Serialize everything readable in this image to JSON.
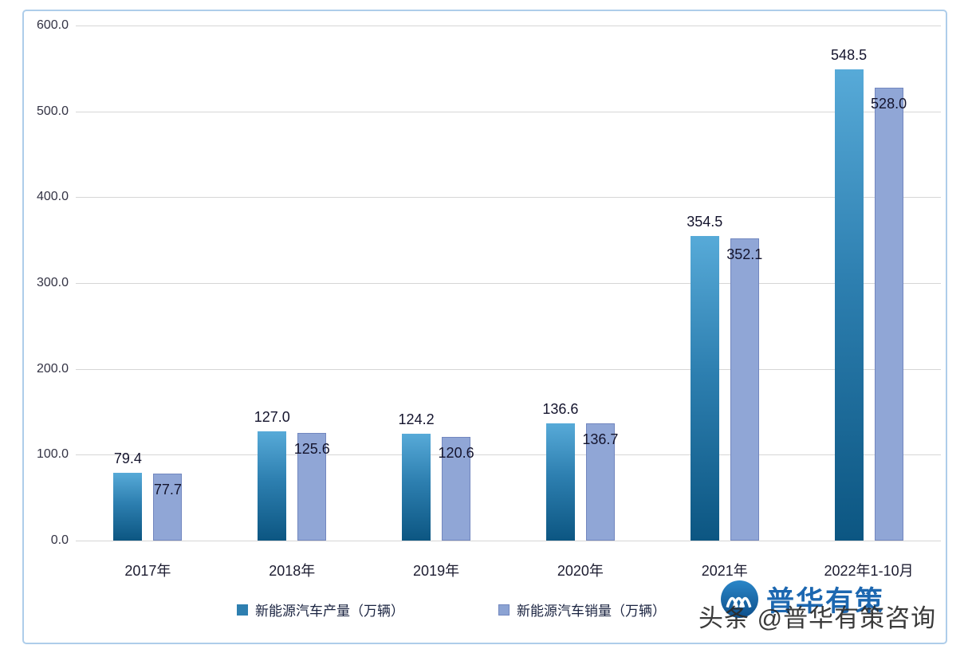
{
  "chart_data": {
    "type": "bar",
    "categories": [
      "2017年",
      "2018年",
      "2019年",
      "2020年",
      "2021年",
      "2022年1-10月"
    ],
    "series": [
      {
        "name": "新能源汽车产量（万辆）",
        "values": [
          79.4,
          127.0,
          124.2,
          136.6,
          354.5,
          548.5
        ],
        "color_top": "#57aad8",
        "color_bottom": "#0c5682"
      },
      {
        "name": "新能源汽车销量（万辆）",
        "values": [
          77.7,
          125.6,
          120.6,
          136.7,
          352.1,
          528.0
        ],
        "color": "#90a6d6",
        "border_color": "#7287bf"
      }
    ],
    "title": "",
    "xlabel": "",
    "ylabel": "",
    "ylim": [
      0,
      600
    ],
    "ytick_step": 100,
    "ytick_labels": [
      "0.0",
      "100.0",
      "200.0",
      "300.0",
      "400.0",
      "500.0",
      "600.0"
    ],
    "grid": true,
    "legend_position": "bottom"
  },
  "branding": {
    "logo_text": "普华有策",
    "logo_color": "#1c67b0"
  },
  "watermark": {
    "text": "头条 @普华有策咨询"
  }
}
